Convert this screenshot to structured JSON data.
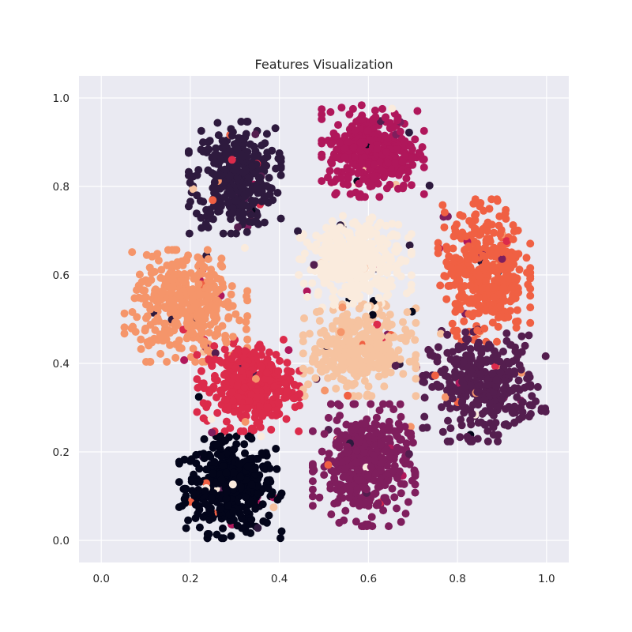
{
  "chart_data": {
    "type": "scatter",
    "title": "Features Visualization",
    "xlabel": "",
    "ylabel": "",
    "xlim": [
      -0.05,
      1.05
    ],
    "ylim": [
      -0.05,
      1.05
    ],
    "x_ticks": [
      "0.0",
      "0.2",
      "0.4",
      "0.6",
      "0.8",
      "1.0"
    ],
    "y_ticks": [
      "0.0",
      "0.2",
      "0.4",
      "0.6",
      "0.8",
      "1.0"
    ],
    "grid": true,
    "legend": "none",
    "background_color": "#eaeaf2",
    "grid_color": "#ffffff",
    "colormap": "rocket",
    "clusters": [
      {
        "class": 0,
        "color": "#03051a",
        "center": [
          0.29,
          0.12
        ],
        "spread": [
          0.05,
          0.05
        ],
        "count": 420
      },
      {
        "class": 1,
        "color": "#2e1a3e",
        "center": [
          0.3,
          0.82
        ],
        "spread": [
          0.045,
          0.055
        ],
        "count": 380
      },
      {
        "class": 2,
        "color": "#541e4f",
        "center": [
          0.86,
          0.35
        ],
        "spread": [
          0.06,
          0.055
        ],
        "count": 340
      },
      {
        "class": 3,
        "color": "#7f1e5d",
        "center": [
          0.59,
          0.17
        ],
        "spread": [
          0.05,
          0.06
        ],
        "count": 400
      },
      {
        "class": 4,
        "color": "#b0175b",
        "center": [
          0.61,
          0.88
        ],
        "spread": [
          0.05,
          0.045
        ],
        "count": 380
      },
      {
        "class": 5,
        "color": "#dc2b4b",
        "center": [
          0.33,
          0.35
        ],
        "spread": [
          0.05,
          0.045
        ],
        "count": 360
      },
      {
        "class": 6,
        "color": "#f06043",
        "center": [
          0.86,
          0.61
        ],
        "spread": [
          0.045,
          0.07
        ],
        "count": 400
      },
      {
        "class": 7,
        "color": "#f5956a",
        "center": [
          0.19,
          0.53
        ],
        "spread": [
          0.06,
          0.055
        ],
        "count": 380
      },
      {
        "class": 8,
        "color": "#f6c3a0",
        "center": [
          0.58,
          0.43
        ],
        "spread": [
          0.055,
          0.045
        ],
        "count": 380
      },
      {
        "class": 9,
        "color": "#faebdd",
        "center": [
          0.57,
          0.63
        ],
        "spread": [
          0.055,
          0.045
        ],
        "count": 380
      }
    ]
  }
}
